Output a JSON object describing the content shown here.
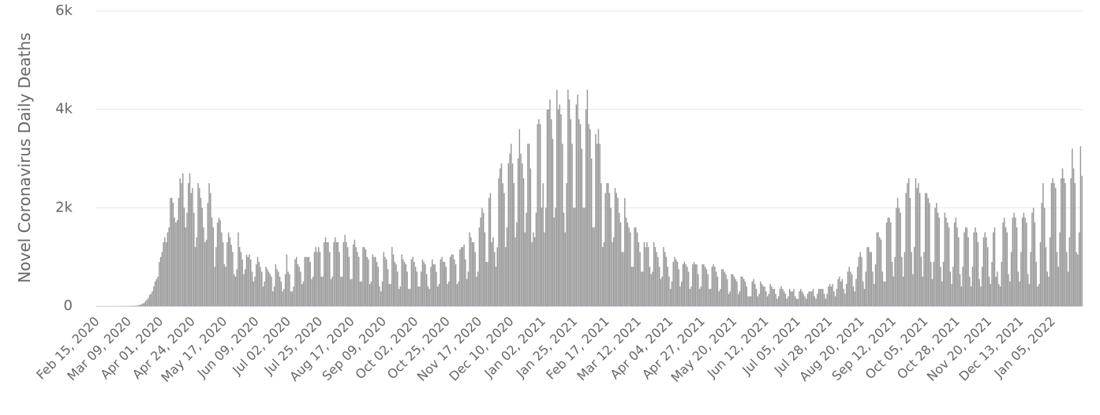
{
  "chart_data": {
    "type": "bar",
    "y_label": "Novel Coronavirus Daily Deaths",
    "color": "#999999",
    "grid": true,
    "ylim": [
      0,
      6000
    ],
    "yticks": [
      0,
      {
        "value": 2000,
        "label": "2k"
      },
      {
        "value": 4000,
        "label": "4k"
      },
      {
        "value": 6000,
        "label": "6k"
      }
    ],
    "categories": [
      "Feb 15, 2020",
      null,
      null,
      null,
      null,
      null,
      null,
      null,
      null,
      null,
      null,
      null,
      null,
      null,
      null,
      null,
      null,
      null,
      null,
      null,
      null,
      null,
      null,
      "Mar 09, 2020",
      null,
      null,
      null,
      null,
      null,
      null,
      null,
      null,
      null,
      null,
      null,
      null,
      null,
      null,
      null,
      null,
      null,
      null,
      null,
      null,
      null,
      null,
      "Apr 01, 2020",
      null,
      null,
      null,
      null,
      null,
      null,
      null,
      null,
      null,
      null,
      null,
      null,
      null,
      null,
      null,
      null,
      null,
      null,
      null,
      null,
      null,
      null,
      "Apr 24, 2020",
      null,
      null,
      null,
      null,
      null,
      null,
      null,
      null,
      null,
      null,
      null,
      null,
      null,
      null,
      null,
      null,
      null,
      null,
      null,
      null,
      null,
      null,
      "May 17, 2020",
      null,
      null,
      null,
      null,
      null,
      null,
      null,
      null,
      null,
      null,
      null,
      null,
      null,
      null,
      null,
      null,
      null,
      null,
      null,
      null,
      null,
      null,
      "Jun 09, 2020",
      null,
      null,
      null,
      null,
      null,
      null,
      null,
      null,
      null,
      null,
      null,
      null,
      null,
      null,
      null,
      null,
      null,
      null,
      null,
      null,
      null,
      null,
      "Jul 02, 2020",
      null,
      null,
      null,
      null,
      null,
      null,
      null,
      null,
      null,
      null,
      null,
      null,
      null,
      null,
      null,
      null,
      null,
      null,
      null,
      null,
      null,
      null,
      "Jul 25, 2020",
      null,
      null,
      null,
      null,
      null,
      null,
      null,
      null,
      null,
      null,
      null,
      null,
      null,
      null,
      null,
      null,
      null,
      null,
      null,
      null,
      null,
      null,
      "Aug 17, 2020",
      null,
      null,
      null,
      null,
      null,
      null,
      null,
      null,
      null,
      null,
      null,
      null,
      null,
      null,
      null,
      null,
      null,
      null,
      null,
      null,
      null,
      null,
      "Sep 09, 2020",
      null,
      null,
      null,
      null,
      null,
      null,
      null,
      null,
      null,
      null,
      null,
      null,
      null,
      null,
      null,
      null,
      null,
      null,
      null,
      null,
      null,
      null,
      "Oct 02, 2020",
      null,
      null,
      null,
      null,
      null,
      null,
      null,
      null,
      null,
      null,
      null,
      null,
      null,
      null,
      null,
      null,
      null,
      null,
      null,
      null,
      null,
      null,
      "Oct 25, 2020",
      null,
      null,
      null,
      null,
      null,
      null,
      null,
      null,
      null,
      null,
      null,
      null,
      null,
      null,
      null,
      null,
      null,
      null,
      null,
      null,
      null,
      null,
      "Nov 17, 2020",
      null,
      null,
      null,
      null,
      null,
      null,
      null,
      null,
      null,
      null,
      null,
      null,
      null,
      null,
      null,
      null,
      null,
      null,
      null,
      null,
      null,
      null,
      "Dec 10, 2020",
      null,
      null,
      null,
      null,
      null,
      null,
      null,
      null,
      null,
      null,
      null,
      null,
      null,
      null,
      null,
      null,
      null,
      null,
      null,
      null,
      null,
      null,
      "Jan 02, 2021",
      null,
      null,
      null,
      null,
      null,
      null,
      null,
      null,
      null,
      null,
      null,
      null,
      null,
      null,
      null,
      null,
      null,
      null,
      null,
      null,
      null,
      null,
      "Jan 25, 2021",
      null,
      null,
      null,
      null,
      null,
      null,
      null,
      null,
      null,
      null,
      null,
      null,
      null,
      null,
      null,
      null,
      null,
      null,
      null,
      null,
      null,
      null,
      "Feb 17, 2021",
      null,
      null,
      null,
      null,
      null,
      null,
      null,
      null,
      null,
      null,
      null,
      null,
      null,
      null,
      null,
      null,
      null,
      null,
      null,
      null,
      null,
      null,
      "Mar 12, 2021",
      null,
      null,
      null,
      null,
      null,
      null,
      null,
      null,
      null,
      null,
      null,
      null,
      null,
      null,
      null,
      null,
      null,
      null,
      null,
      null,
      null,
      null,
      "Apr 04, 2021",
      null,
      null,
      null,
      null,
      null,
      null,
      null,
      null,
      null,
      null,
      null,
      null,
      null,
      null,
      null,
      null,
      null,
      null,
      null,
      null,
      null,
      null,
      "Apr 27, 2021",
      null,
      null,
      null,
      null,
      null,
      null,
      null,
      null,
      null,
      null,
      null,
      null,
      null,
      null,
      null,
      null,
      null,
      null,
      null,
      null,
      null,
      null,
      "May 20, 2021",
      null,
      null,
      null,
      null,
      null,
      null,
      null,
      null,
      null,
      null,
      null,
      null,
      null,
      null,
      null,
      null,
      null,
      null,
      null,
      null,
      null,
      null,
      "Jun 12, 2021",
      null,
      null,
      null,
      null,
      null,
      null,
      null,
      null,
      null,
      null,
      null,
      null,
      null,
      null,
      null,
      null,
      null,
      null,
      null,
      null,
      null,
      null,
      "Jul 05, 2021",
      null,
      null,
      null,
      null,
      null,
      null,
      null,
      null,
      null,
      null,
      null,
      null,
      null,
      null,
      null,
      null,
      null,
      null,
      null,
      null,
      null,
      null,
      "Jul 28, 2021",
      null,
      null,
      null,
      null,
      null,
      null,
      null,
      null,
      null,
      null,
      null,
      null,
      null,
      null,
      null,
      null,
      null,
      null,
      null,
      null,
      null,
      null,
      "Aug 20, 2021",
      null,
      null,
      null,
      null,
      null,
      null,
      null,
      null,
      null,
      null,
      null,
      null,
      null,
      null,
      null,
      null,
      null,
      null,
      null,
      null,
      null,
      null,
      "Sep 12, 2021",
      null,
      null,
      null,
      null,
      null,
      null,
      null,
      null,
      null,
      null,
      null,
      null,
      null,
      null,
      null,
      null,
      null,
      null,
      null,
      null,
      null,
      null,
      "Oct 05, 2021",
      null,
      null,
      null,
      null,
      null,
      null,
      null,
      null,
      null,
      null,
      null,
      null,
      null,
      null,
      null,
      null,
      null,
      null,
      null,
      null,
      null,
      null,
      "Oct 28, 2021",
      null,
      null,
      null,
      null,
      null,
      null,
      null,
      null,
      null,
      null,
      null,
      null,
      null,
      null,
      null,
      null,
      null,
      null,
      null,
      null,
      null,
      null,
      "Nov 20, 2021",
      null,
      null,
      null,
      null,
      null,
      null,
      null,
      null,
      null,
      null,
      null,
      null,
      null,
      null,
      null,
      null,
      null,
      null,
      null,
      null,
      null,
      null,
      "Dec 13, 2021",
      null,
      null,
      null,
      null,
      null,
      null,
      null,
      null,
      null,
      null,
      null,
      null,
      null,
      null,
      null,
      null,
      null,
      null,
      null,
      null,
      null,
      null,
      "Jan 05, 2022",
      null,
      null,
      null,
      null,
      null,
      null,
      null,
      null,
      null,
      null,
      null,
      null,
      null,
      null,
      null,
      null,
      null,
      null,
      null,
      null,
      null
    ],
    "values": [
      0,
      0,
      0,
      0,
      0,
      0,
      0,
      0,
      0,
      0,
      0,
      0,
      0,
      0,
      0,
      0,
      1,
      0,
      1,
      1,
      2,
      1,
      2,
      4,
      3,
      5,
      6,
      8,
      10,
      12,
      20,
      25,
      40,
      55,
      60,
      100,
      130,
      160,
      230,
      250,
      300,
      400,
      500,
      550,
      600,
      900,
      1000,
      1100,
      1300,
      1400,
      1300,
      1500,
      1600,
      2200,
      2200,
      2100,
      1800,
      1700,
      1750,
      2200,
      2600,
      2500,
      2700,
      2000,
      1600,
      1900,
      2500,
      2700,
      2300,
      2400,
      1900,
      1200,
      1400,
      2500,
      2400,
      2200,
      2000,
      1600,
      1300,
      1350,
      2100,
      2500,
      2300,
      1800,
      1600,
      800,
      1200,
      1700,
      1800,
      1750,
      1500,
      1300,
      850,
      800,
      1300,
      1500,
      1400,
      1250,
      1100,
      650,
      600,
      750,
      1500,
      1200,
      1100,
      950,
      650,
      750,
      1050,
      1000,
      1050,
      950,
      700,
      500,
      600,
      850,
      1000,
      900,
      800,
      700,
      400,
      500,
      800,
      750,
      700,
      650,
      600,
      300,
      400,
      850,
      750,
      700,
      600,
      500,
      300,
      350,
      650,
      1050,
      700,
      650,
      300,
      300,
      400,
      950,
      1000,
      850,
      800,
      700,
      450,
      500,
      1000,
      1000,
      1000,
      1000,
      900,
      550,
      600,
      1100,
      1200,
      1100,
      1200,
      1100,
      600,
      600,
      1300,
      1400,
      1300,
      1300,
      1100,
      550,
      600,
      1300,
      1400,
      1300,
      1300,
      1100,
      600,
      600,
      1300,
      1450,
      1300,
      1200,
      1000,
      550,
      550,
      1250,
      1350,
      1200,
      1100,
      1000,
      500,
      500,
      1200,
      1200,
      1150,
      1000,
      950,
      450,
      500,
      1050,
      1000,
      1000,
      900,
      800,
      400,
      300,
      500,
      1100,
      1000,
      950,
      750,
      450,
      450,
      1200,
      1050,
      900,
      850,
      700,
      350,
      400,
      1050,
      950,
      900,
      850,
      700,
      350,
      350,
      950,
      1000,
      900,
      800,
      700,
      400,
      400,
      700,
      950,
      900,
      850,
      650,
      400,
      350,
      800,
      950,
      850,
      850,
      700,
      400,
      450,
      950,
      1000,
      900,
      900,
      800,
      450,
      500,
      1000,
      1050,
      1050,
      950,
      850,
      450,
      500,
      1150,
      1200,
      1200,
      1250,
      950,
      550,
      700,
      1500,
      1400,
      1300,
      1300,
      1100,
      600,
      700,
      1600,
      1800,
      2000,
      1900,
      1500,
      900,
      900,
      2200,
      2300,
      1300,
      1400,
      1100,
      800,
      1200,
      2600,
      2800,
      2900,
      2500,
      2300,
      1200,
      1600,
      2900,
      3100,
      3300,
      2900,
      2500,
      1400,
      1700,
      3000,
      3600,
      3100,
      2900,
      2600,
      1500,
      1900,
      3300,
      3300,
      2800,
      1300,
      1500,
      1400,
      1900,
      3700,
      3800,
      3700,
      2000,
      2500,
      1500,
      2000,
      4000,
      4000,
      4200,
      3800,
      3400,
      1800,
      2000,
      4400,
      4000,
      4100,
      3900,
      3300,
      1900,
      1500,
      2500,
      4400,
      4200,
      3800,
      3300,
      2000,
      2000,
      4100,
      4300,
      3800,
      3700,
      3200,
      2000,
      2000,
      4000,
      4400,
      3700,
      3600,
      3000,
      1600,
      1600,
      3500,
      3300,
      3600,
      3300,
      2500,
      1200,
      1300,
      2300,
      2500,
      2500,
      2300,
      2000,
      1300,
      1400,
      2400,
      2300,
      2200,
      1900,
      1700,
      1100,
      1100,
      2200,
      1800,
      1700,
      1600,
      1500,
      800,
      800,
      1600,
      1600,
      1500,
      1300,
      1100,
      700,
      700,
      1300,
      1200,
      1300,
      1200,
      800,
      650,
      700,
      1300,
      1200,
      1100,
      1000,
      800,
      550,
      600,
      1200,
      1100,
      1000,
      800,
      600,
      350,
      500,
      900,
      1000,
      950,
      900,
      750,
      400,
      500,
      850,
      900,
      850,
      800,
      700,
      350,
      400,
      850,
      900,
      850,
      850,
      650,
      350,
      400,
      850,
      850,
      800,
      750,
      650,
      350,
      350,
      800,
      850,
      800,
      700,
      600,
      300,
      350,
      750,
      750,
      700,
      650,
      550,
      250,
      300,
      650,
      650,
      600,
      550,
      500,
      250,
      300,
      600,
      600,
      550,
      500,
      400,
      200,
      200,
      200,
      500,
      550,
      450,
      350,
      200,
      250,
      500,
      450,
      400,
      400,
      300,
      200,
      250,
      450,
      400,
      350,
      350,
      250,
      150,
      200,
      350,
      400,
      350,
      300,
      250,
      150,
      200,
      350,
      300,
      300,
      350,
      200,
      150,
      150,
      300,
      350,
      300,
      250,
      200,
      150,
      250,
      300,
      300,
      300,
      350,
      200,
      150,
      250,
      350,
      350,
      350,
      350,
      250,
      150,
      250,
      400,
      450,
      400,
      450,
      300,
      200,
      350,
      550,
      600,
      500,
      550,
      350,
      250,
      450,
      700,
      800,
      700,
      650,
      400,
      300,
      550,
      800,
      1000,
      1100,
      1000,
      500,
      350,
      700,
      1200,
      1200,
      1100,
      1100,
      700,
      450,
      850,
      1500,
      1500,
      1400,
      1350,
      700,
      500,
      500,
      1700,
      1800,
      1800,
      1700,
      900,
      600,
      1000,
      2000,
      2200,
      2000,
      1900,
      1000,
      600,
      1100,
      2300,
      2500,
      2600,
      2200,
      1100,
      650,
      1200,
      2600,
      2400,
      2500,
      2300,
      1000,
      600,
      1100,
      2300,
      2300,
      2200,
      2100,
      900,
      550,
      900,
      2000,
      2100,
      1900,
      1800,
      800,
      500,
      900,
      1900,
      1800,
      1700,
      1600,
      700,
      450,
      800,
      1700,
      1800,
      1600,
      1400,
      650,
      400,
      800,
      1500,
      1600,
      1600,
      1400,
      600,
      400,
      800,
      1500,
      1600,
      1500,
      1300,
      550,
      400,
      800,
      1400,
      1500,
      1400,
      1200,
      600,
      450,
      900,
      1500,
      1600,
      600,
      700,
      450,
      400,
      900,
      1700,
      1800,
      1600,
      1500,
      650,
      500,
      1100,
      1800,
      1900,
      1800,
      1600,
      700,
      500,
      1100,
      1800,
      1900,
      1800,
      1700,
      650,
      450,
      1100,
      1900,
      2000,
      1700,
      900,
      400,
      450,
      1300,
      2100,
      2500,
      2000,
      1200,
      700,
      600,
      1400,
      2500,
      2600,
      2500,
      2400,
      1100,
      800,
      1500,
      2600,
      2800,
      2600,
      2500,
      1100,
      700,
      1400,
      2600,
      3200,
      2800,
      2500,
      1100,
      1050,
      1500,
      3250,
      2650
    ]
  }
}
